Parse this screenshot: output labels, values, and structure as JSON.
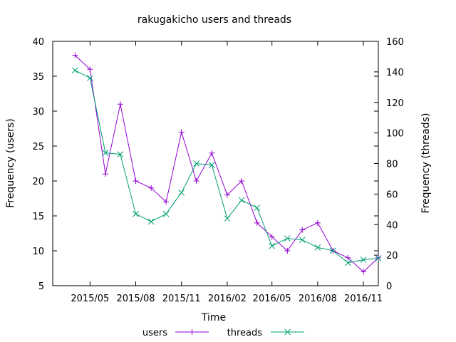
{
  "chart_data": {
    "type": "line",
    "title": "rakugakicho users and threads",
    "xlabel": "Time",
    "ylabel_left": "Frequency (users)",
    "ylabel_right": "Frequency (threads)",
    "x_tick_labels": [
      "2015/05",
      "2015/08",
      "2015/11",
      "2016/02",
      "2016/05",
      "2016/08",
      "2016/11"
    ],
    "x_tick_dates": [
      "2015-05",
      "2015-08",
      "2015-11",
      "2016-02",
      "2016-05",
      "2016-08",
      "2016-11"
    ],
    "x_range": [
      "2015-02-15",
      "2016-12-01"
    ],
    "ylim_left": [
      5,
      40
    ],
    "yticks_left": [
      "5",
      "10",
      "15",
      "20",
      "25",
      "30",
      "35",
      "40"
    ],
    "ylim_right": [
      0,
      160
    ],
    "yticks_right": [
      "0",
      "20",
      "40",
      "60",
      "80",
      "100",
      "120",
      "140",
      "160"
    ],
    "grid": false,
    "legend_position": "bottom-center",
    "x": [
      "2015-04",
      "2015-05",
      "2015-06",
      "2015-07",
      "2015-08",
      "2015-09",
      "2015-10",
      "2015-11",
      "2015-12",
      "2016-01",
      "2016-02",
      "2016-03",
      "2016-04",
      "2016-05",
      "2016-06",
      "2016-07",
      "2016-08",
      "2016-09",
      "2016-10",
      "2016-11",
      "2016-12"
    ],
    "series": [
      {
        "name": "users",
        "axis": "left",
        "color": "#9400d3",
        "marker": "plus",
        "values": [
          38,
          36,
          21,
          31,
          20,
          19,
          17,
          27,
          20,
          24,
          18,
          20,
          14,
          12,
          10,
          13,
          14,
          10,
          9,
          7,
          9
        ]
      },
      {
        "name": "threads",
        "axis": "right",
        "color": "#009e73",
        "marker": "cross",
        "values": [
          141,
          136,
          87,
          86,
          47,
          42,
          47,
          61,
          80,
          79,
          44,
          56,
          51,
          26,
          31,
          30,
          25,
          23,
          15,
          17,
          18
        ]
      }
    ]
  }
}
